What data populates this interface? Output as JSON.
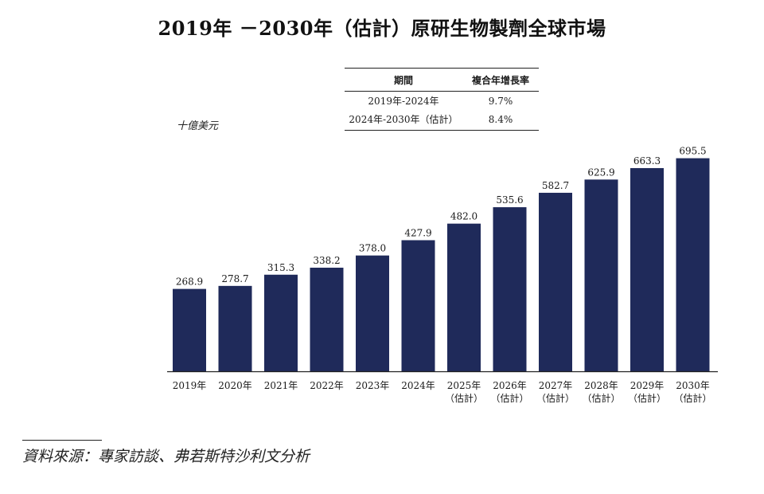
{
  "chart_data": {
    "type": "bar",
    "title": "2019年 －2030年（估計）原研生物製劑全球市場",
    "unit_label": "十億美元",
    "categories": [
      {
        "line1": "2019年",
        "line2": ""
      },
      {
        "line1": "2020年",
        "line2": ""
      },
      {
        "line1": "2021年",
        "line2": ""
      },
      {
        "line1": "2022年",
        "line2": ""
      },
      {
        "line1": "2023年",
        "line2": ""
      },
      {
        "line1": "2024年",
        "line2": ""
      },
      {
        "line1": "2025年",
        "line2": "（估計）"
      },
      {
        "line1": "2026年",
        "line2": "（估計）"
      },
      {
        "line1": "2027年",
        "line2": "（估計）"
      },
      {
        "line1": "2028年",
        "line2": "（估計）"
      },
      {
        "line1": "2029年",
        "line2": "（估計）"
      },
      {
        "line1": "2030年",
        "line2": "（估計）"
      }
    ],
    "values": [
      268.9,
      278.7,
      315.3,
      338.2,
      378.0,
      427.9,
      482.0,
      535.6,
      582.7,
      625.9,
      663.3,
      695.5
    ],
    "value_labels": [
      "268.9",
      "278.7",
      "315.3",
      "338.2",
      "378.0",
      "427.9",
      "482.0",
      "535.6",
      "582.7",
      "625.9",
      "663.3",
      "695.5"
    ],
    "bar_color": "#1f2a5a",
    "ylim": [
      0,
      720
    ],
    "grid": false,
    "legend": "none"
  },
  "cagr_table": {
    "header": {
      "period": "期間",
      "cagr": "複合年增長率"
    },
    "rows": [
      {
        "period": "2019年-2024年",
        "cagr": "9.7%"
      },
      {
        "period": "2024年-2030年（估計）",
        "cagr": "8.4%"
      }
    ]
  },
  "source": "資料來源：專家訪談、弗若斯特沙利文分析"
}
